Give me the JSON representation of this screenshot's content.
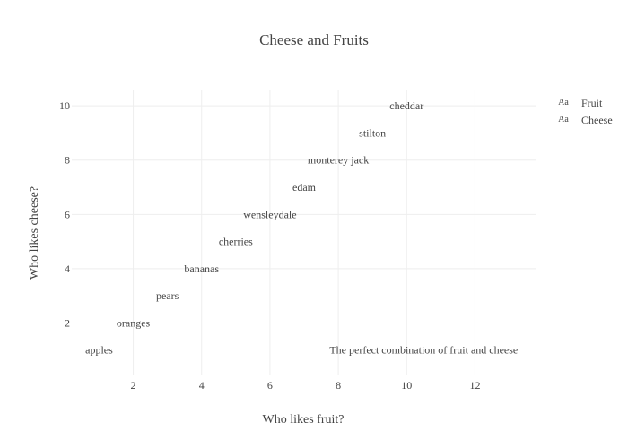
{
  "chart_data": {
    "type": "scatter",
    "title": "Cheese and Fruits",
    "xlabel": "Who likes fruit?",
    "ylabel": "Who likes cheese?",
    "xlim": [
      0.2,
      13.8
    ],
    "ylim": [
      0.1,
      10.6
    ],
    "x_ticks": [
      2,
      4,
      6,
      8,
      10,
      12
    ],
    "y_ticks": [
      2,
      4,
      6,
      8,
      10
    ],
    "grid": true,
    "legend_position": "top-right",
    "mode": "text",
    "series": [
      {
        "name": "Fruit",
        "color": "#444444",
        "points": [
          {
            "x": 1,
            "y": 1,
            "label": "apples"
          },
          {
            "x": 2,
            "y": 2,
            "label": "oranges"
          },
          {
            "x": 3,
            "y": 3,
            "label": "pears"
          },
          {
            "x": 4,
            "y": 4,
            "label": "bananas"
          },
          {
            "x": 5,
            "y": 5,
            "label": "cherries"
          }
        ]
      },
      {
        "name": "Cheese",
        "color": "#444444",
        "points": [
          {
            "x": 6,
            "y": 6,
            "label": "wensleydale"
          },
          {
            "x": 7,
            "y": 7,
            "label": "edam"
          },
          {
            "x": 8,
            "y": 8,
            "label": "monterey jack"
          },
          {
            "x": 9,
            "y": 9,
            "label": "stilton"
          },
          {
            "x": 10,
            "y": 10,
            "label": "cheddar"
          }
        ]
      }
    ],
    "annotations": [
      {
        "x": 10.5,
        "y": 1,
        "text": "The perfect combination of fruit and cheese"
      }
    ]
  },
  "legend": {
    "marker_text": "Aa"
  }
}
